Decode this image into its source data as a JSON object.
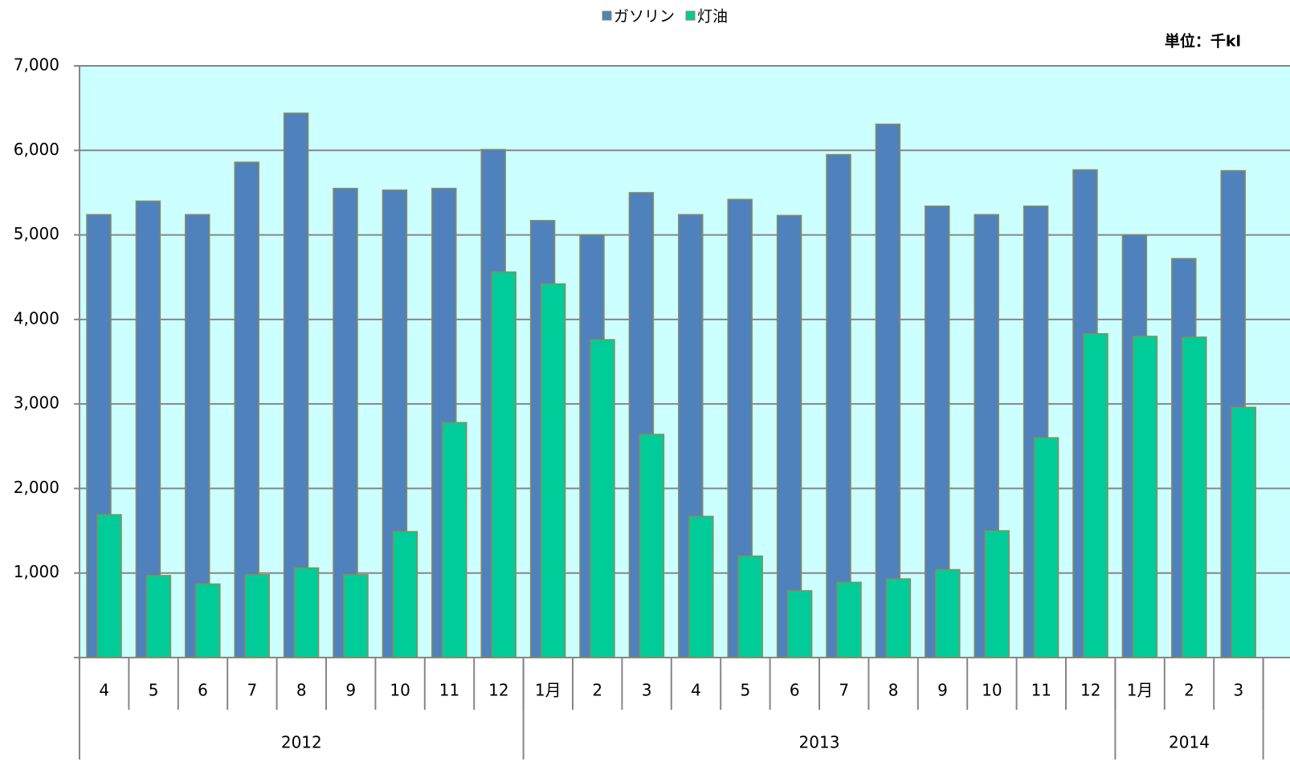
{
  "chart_data": {
    "type": "bar",
    "unit_label": "単位：千kl",
    "categories": [
      "4",
      "5",
      "6",
      "7",
      "8",
      "9",
      "10",
      "11",
      "12",
      "1月",
      "2",
      "3",
      "4",
      "5",
      "6",
      "7",
      "8",
      "9",
      "10",
      "11",
      "12",
      "1月",
      "2",
      "3"
    ],
    "groups": [
      {
        "label": "2012",
        "size": 9
      },
      {
        "label": "2013",
        "size": 12
      },
      {
        "label": "2014",
        "size": 3
      }
    ],
    "series": [
      {
        "name": "ガソリン",
        "color": "#4f81bd",
        "values": [
          5240,
          5400,
          5240,
          5860,
          6440,
          5550,
          5530,
          5550,
          6010,
          5170,
          5000,
          5500,
          5240,
          5420,
          5230,
          5950,
          6310,
          5340,
          5240,
          5340,
          5770,
          5000,
          4720,
          5760
        ]
      },
      {
        "name": "灯油",
        "color": "#00cc99",
        "values": [
          1690,
          970,
          870,
          980,
          1060,
          980,
          1490,
          2780,
          4560,
          4420,
          3760,
          2640,
          1670,
          1200,
          790,
          890,
          930,
          1040,
          1500,
          2600,
          3830,
          3800,
          3790,
          2960
        ]
      }
    ],
    "ylim": [
      0,
      7000
    ],
    "yticks": [
      {
        "value": 1000,
        "label": "1,000"
      },
      {
        "value": 2000,
        "label": "2,000"
      },
      {
        "value": 3000,
        "label": "3,000"
      },
      {
        "value": 4000,
        "label": "4,000"
      },
      {
        "value": 5000,
        "label": "5,000"
      },
      {
        "value": 6000,
        "label": "6,000"
      },
      {
        "value": 7000,
        "label": "7,000"
      }
    ],
    "grid": true,
    "legend": "top"
  }
}
